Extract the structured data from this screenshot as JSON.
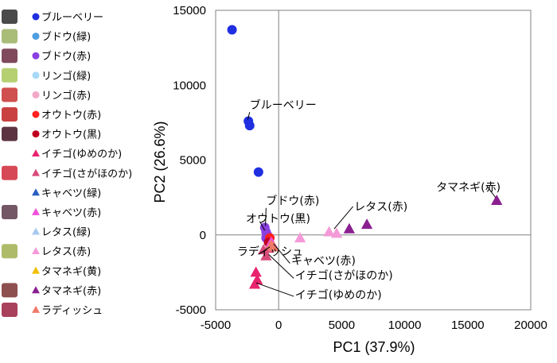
{
  "chart_data": {
    "type": "scatter",
    "xlabel": "PC1 (37.9%)",
    "ylabel": "PC2 (26.6%)",
    "xlim": [
      -5000,
      20000
    ],
    "ylim": [
      -5000,
      15000
    ],
    "xticks": [
      "-5000",
      "0",
      "5000",
      "10000",
      "15000",
      "20000"
    ],
    "yticks": [
      "-5000",
      "0",
      "5000",
      "10000",
      "15000"
    ],
    "grid": false,
    "legend_position": "left",
    "series": [
      {
        "name": "ブルーベリー",
        "marker": "circle",
        "color": "#1f2fe0",
        "points": [
          [
            -3700,
            13700
          ],
          [
            -2400,
            7600
          ],
          [
            -2300,
            7300
          ],
          [
            -1600,
            4200
          ]
        ]
      },
      {
        "name": "ブドウ(緑)",
        "marker": "circle",
        "color": "#4f9fe0",
        "points": []
      },
      {
        "name": "ブドウ(赤)",
        "marker": "circle",
        "color": "#8a3fe0",
        "points": [
          [
            -1100,
            500
          ],
          [
            -1000,
            200
          ],
          [
            -900,
            0
          ],
          [
            -1000,
            -200
          ]
        ]
      },
      {
        "name": "リンゴ(緑)",
        "marker": "circle",
        "color": "#a8d8f8",
        "points": []
      },
      {
        "name": "リンゴ(赤)",
        "marker": "circle",
        "color": "#f4a8c8",
        "points": []
      },
      {
        "name": "オウトウ(赤)",
        "marker": "circle",
        "color": "#ff2020",
        "points": [
          [
            -700,
            -200
          ]
        ]
      },
      {
        "name": "オウトウ(黒)",
        "marker": "circle",
        "color": "#c00020",
        "points": [
          [
            -800,
            -500
          ]
        ]
      },
      {
        "name": "イチゴ(ゆめのか)",
        "marker": "triangle",
        "color": "#e8246e",
        "points": [
          [
            -1800,
            -2500
          ],
          [
            -1700,
            -3000
          ],
          [
            -1900,
            -3300
          ]
        ]
      },
      {
        "name": "イチゴ(さがほのか)",
        "marker": "triangle",
        "color": "#d84a7a",
        "points": [
          [
            -1200,
            -1000
          ],
          [
            -1000,
            -1400
          ],
          [
            -800,
            -900
          ]
        ]
      },
      {
        "name": "キャベツ(緑)",
        "marker": "triangle",
        "color": "#2860c0",
        "points": []
      },
      {
        "name": "キャベツ(赤)",
        "marker": "triangle",
        "color": "#f050d8",
        "points": [
          [
            -600,
            -500
          ],
          [
            -500,
            -600
          ]
        ]
      },
      {
        "name": "レタス(緑)",
        "marker": "triangle",
        "color": "#a8c8f0",
        "points": []
      },
      {
        "name": "レタス(赤)",
        "marker": "triangle",
        "color": "#f49ad8",
        "points": [
          [
            1700,
            -200
          ],
          [
            4000,
            200
          ],
          [
            4600,
            100
          ]
        ]
      },
      {
        "name": "タマネギ(黄)",
        "marker": "triangle",
        "color": "#f0c000",
        "points": []
      },
      {
        "name": "タマネギ(赤)",
        "marker": "triangle",
        "color": "#8a2090",
        "points": [
          [
            5600,
            400
          ],
          [
            7000,
            700
          ],
          [
            17300,
            2300
          ]
        ]
      },
      {
        "name": "ラディッシュ",
        "marker": "triangle",
        "color": "#f07a6a",
        "points": [
          [
            -600,
            -700
          ],
          [
            -400,
            -800
          ]
        ]
      }
    ],
    "annotations": [
      {
        "text": "ブルーベリー",
        "x": -2300,
        "y": 8700
      },
      {
        "text": "ブドウ(赤)",
        "x": -1000,
        "y": 2300
      },
      {
        "text": "オウトウ(黒)",
        "x": -2600,
        "y": 1100
      },
      {
        "text": "ラディッシュ",
        "x": -3300,
        "y": -1100
      },
      {
        "text": "キャベツ(赤)",
        "x": 1000,
        "y": -1700
      },
      {
        "text": "イチゴ(さがほのか)",
        "x": 1300,
        "y": -2700
      },
      {
        "text": "イチゴ(ゆめのか)",
        "x": 1300,
        "y": -4000
      },
      {
        "text": "レタス(赤)",
        "x": 6000,
        "y": 1900
      },
      {
        "text": "タマネギ(赤)",
        "x": 12500,
        "y": 3200
      }
    ]
  }
}
